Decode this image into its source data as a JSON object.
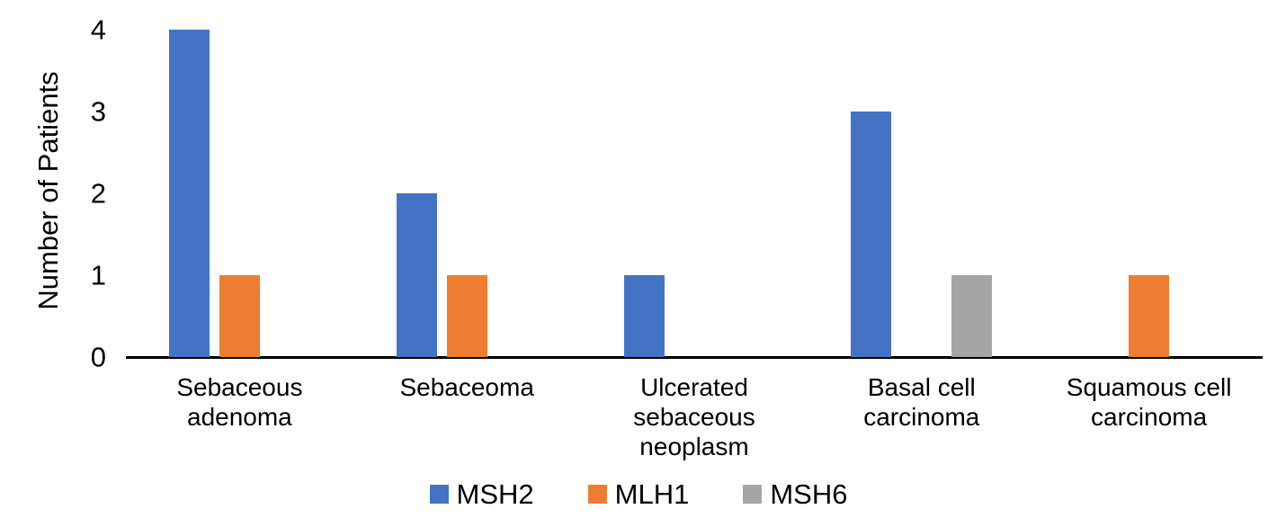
{
  "chart_data": {
    "type": "bar",
    "title": "",
    "xlabel": "",
    "ylabel": "Number of Patients",
    "categories": [
      "Sebaceous adenoma",
      "Sebaceoma",
      "Ulcerated sebaceous neoplasm",
      "Basal cell carcinoma",
      "Squamous cell carcinoma"
    ],
    "series": [
      {
        "name": "MSH2",
        "color": "#4472C4",
        "values": [
          4,
          2,
          1,
          3,
          0
        ]
      },
      {
        "name": "MLH1",
        "color": "#ED7D31",
        "values": [
          1,
          1,
          0,
          0,
          1
        ]
      },
      {
        "name": "MSH6",
        "color": "#A5A5A5",
        "values": [
          0,
          0,
          0,
          1,
          0
        ]
      }
    ],
    "y_ticks": [
      0,
      1,
      2,
      3,
      4
    ],
    "ylim": [
      0,
      4
    ],
    "grid": false,
    "legend_position": "bottom",
    "axis_color": "#000000",
    "text_color": "#000000",
    "background_color": "#FFFFFF"
  }
}
